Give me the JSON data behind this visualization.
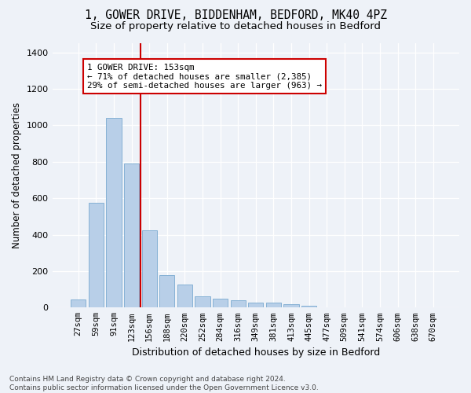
{
  "title_line1": "1, GOWER DRIVE, BIDDENHAM, BEDFORD, MK40 4PZ",
  "title_line2": "Size of property relative to detached houses in Bedford",
  "xlabel": "Distribution of detached houses by size in Bedford",
  "ylabel": "Number of detached properties",
  "categories": [
    "27sqm",
    "59sqm",
    "91sqm",
    "123sqm",
    "156sqm",
    "188sqm",
    "220sqm",
    "252sqm",
    "284sqm",
    "316sqm",
    "349sqm",
    "381sqm",
    "413sqm",
    "445sqm",
    "477sqm",
    "509sqm",
    "541sqm",
    "574sqm",
    "606sqm",
    "638sqm",
    "670sqm"
  ],
  "values": [
    45,
    575,
    1040,
    790,
    425,
    178,
    128,
    63,
    50,
    42,
    28,
    26,
    18,
    10,
    0,
    0,
    0,
    0,
    0,
    0,
    0
  ],
  "bar_color": "#b8cfe8",
  "bar_edge_color": "#7aaad0",
  "vline_x_index": 4,
  "vline_color": "#cc0000",
  "annotation_text": "1 GOWER DRIVE: 153sqm\n← 71% of detached houses are smaller (2,385)\n29% of semi-detached houses are larger (963) →",
  "annotation_box_color": "#ffffff",
  "annotation_box_edge": "#cc0000",
  "ylim": [
    0,
    1450
  ],
  "yticks": [
    0,
    200,
    400,
    600,
    800,
    1000,
    1200,
    1400
  ],
  "background_color": "#eef2f8",
  "plot_background": "#eef2f8",
  "footnote": "Contains HM Land Registry data © Crown copyright and database right 2024.\nContains public sector information licensed under the Open Government Licence v3.0.",
  "title_fontsize": 10.5,
  "subtitle_fontsize": 9.5,
  "tick_fontsize": 7.5,
  "ylabel_fontsize": 8.5,
  "xlabel_fontsize": 9,
  "annotation_fontsize": 7.8,
  "footnote_fontsize": 6.5
}
